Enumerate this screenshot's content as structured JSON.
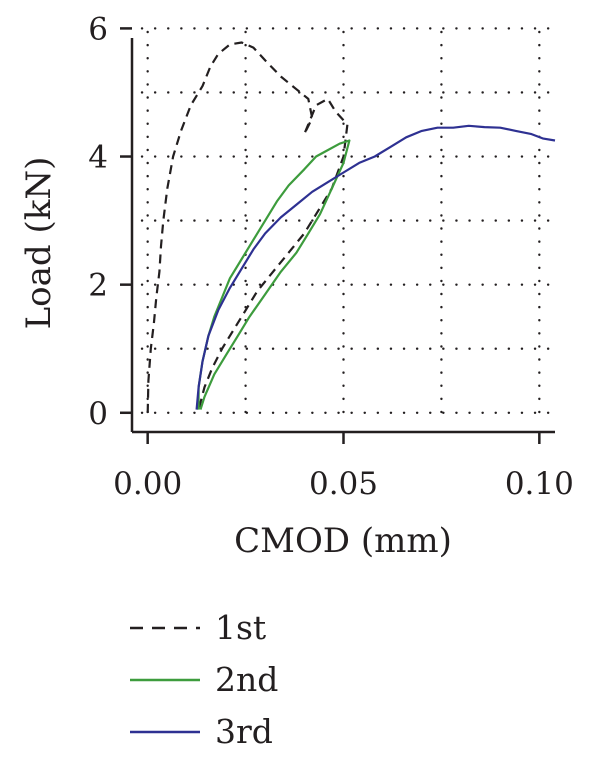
{
  "chart_data": {
    "type": "line",
    "xlabel": "CMOD (mm)",
    "ylabel": "Load (kN)",
    "xlim": [
      -0.004,
      0.104
    ],
    "ylim": [
      -0.3,
      6.1
    ],
    "xticks": [
      {
        "value": 0.0,
        "label": "0.00"
      },
      {
        "value": 0.05,
        "label": "0.05"
      },
      {
        "value": 0.1,
        "label": "0.10"
      }
    ],
    "yticks": [
      {
        "value": 0,
        "label": "0"
      },
      {
        "value": 2,
        "label": "2"
      },
      {
        "value": 4,
        "label": "4"
      },
      {
        "value": 6,
        "label": "6"
      }
    ],
    "grid": true,
    "legend_position": "bottom",
    "series": [
      {
        "name": "1st",
        "color": "#231f20",
        "dash": "dashed",
        "points": [
          [
            0.0,
            0.0
          ],
          [
            0.0002,
            0.5
          ],
          [
            0.0008,
            1.0
          ],
          [
            0.0016,
            1.4
          ],
          [
            0.0022,
            1.8
          ],
          [
            0.003,
            2.2
          ],
          [
            0.0034,
            2.6
          ],
          [
            0.004,
            3.0
          ],
          [
            0.005,
            3.5
          ],
          [
            0.0065,
            4.0
          ],
          [
            0.0085,
            4.4
          ],
          [
            0.011,
            4.8
          ],
          [
            0.014,
            5.1
          ],
          [
            0.016,
            5.4
          ],
          [
            0.018,
            5.6
          ],
          [
            0.021,
            5.75
          ],
          [
            0.024,
            5.78
          ],
          [
            0.027,
            5.7
          ],
          [
            0.03,
            5.5
          ],
          [
            0.034,
            5.25
          ],
          [
            0.038,
            5.05
          ],
          [
            0.041,
            4.9
          ],
          [
            0.042,
            4.6
          ],
          [
            0.04,
            4.35
          ],
          [
            0.043,
            4.8
          ],
          [
            0.046,
            4.9
          ],
          [
            0.048,
            4.7
          ],
          [
            0.051,
            4.5
          ],
          [
            0.05,
            4.0
          ],
          [
            0.047,
            3.5
          ],
          [
            0.044,
            3.2
          ],
          [
            0.04,
            2.8
          ],
          [
            0.036,
            2.5
          ],
          [
            0.032,
            2.2
          ],
          [
            0.028,
            1.9
          ],
          [
            0.025,
            1.6
          ],
          [
            0.022,
            1.3
          ],
          [
            0.019,
            1.0
          ],
          [
            0.0165,
            0.7
          ],
          [
            0.0145,
            0.4
          ],
          [
            0.013,
            0.05
          ]
        ]
      },
      {
        "name": "2nd",
        "color": "#3d9c3d",
        "dash": "solid",
        "points": [
          [
            0.013,
            0.05
          ],
          [
            0.013,
            0.4
          ],
          [
            0.014,
            0.8
          ],
          [
            0.0155,
            1.2
          ],
          [
            0.017,
            1.5
          ],
          [
            0.019,
            1.8
          ],
          [
            0.021,
            2.1
          ],
          [
            0.024,
            2.4
          ],
          [
            0.027,
            2.7
          ],
          [
            0.03,
            3.0
          ],
          [
            0.033,
            3.3
          ],
          [
            0.036,
            3.55
          ],
          [
            0.04,
            3.8
          ],
          [
            0.043,
            4.0
          ],
          [
            0.046,
            4.1
          ],
          [
            0.049,
            4.2
          ],
          [
            0.0515,
            4.25
          ],
          [
            0.05,
            3.9
          ],
          [
            0.047,
            3.5
          ],
          [
            0.044,
            3.1
          ],
          [
            0.041,
            2.8
          ],
          [
            0.038,
            2.5
          ],
          [
            0.034,
            2.2
          ],
          [
            0.03,
            1.85
          ],
          [
            0.026,
            1.5
          ],
          [
            0.023,
            1.2
          ],
          [
            0.02,
            0.9
          ],
          [
            0.017,
            0.6
          ],
          [
            0.0145,
            0.25
          ],
          [
            0.0135,
            0.05
          ]
        ]
      },
      {
        "name": "3rd",
        "color": "#2e3192",
        "dash": "solid",
        "points": [
          [
            0.0125,
            0.05
          ],
          [
            0.013,
            0.4
          ],
          [
            0.014,
            0.8
          ],
          [
            0.0155,
            1.2
          ],
          [
            0.018,
            1.6
          ],
          [
            0.021,
            1.95
          ],
          [
            0.024,
            2.25
          ],
          [
            0.027,
            2.55
          ],
          [
            0.03,
            2.8
          ],
          [
            0.034,
            3.05
          ],
          [
            0.038,
            3.25
          ],
          [
            0.042,
            3.45
          ],
          [
            0.046,
            3.6
          ],
          [
            0.05,
            3.75
          ],
          [
            0.054,
            3.9
          ],
          [
            0.058,
            4.0
          ],
          [
            0.062,
            4.15
          ],
          [
            0.066,
            4.3
          ],
          [
            0.07,
            4.4
          ],
          [
            0.074,
            4.45
          ],
          [
            0.078,
            4.45
          ],
          [
            0.082,
            4.48
          ],
          [
            0.086,
            4.46
          ],
          [
            0.09,
            4.45
          ],
          [
            0.094,
            4.4
          ],
          [
            0.098,
            4.35
          ],
          [
            0.101,
            4.28
          ],
          [
            0.104,
            4.25
          ]
        ]
      }
    ]
  }
}
